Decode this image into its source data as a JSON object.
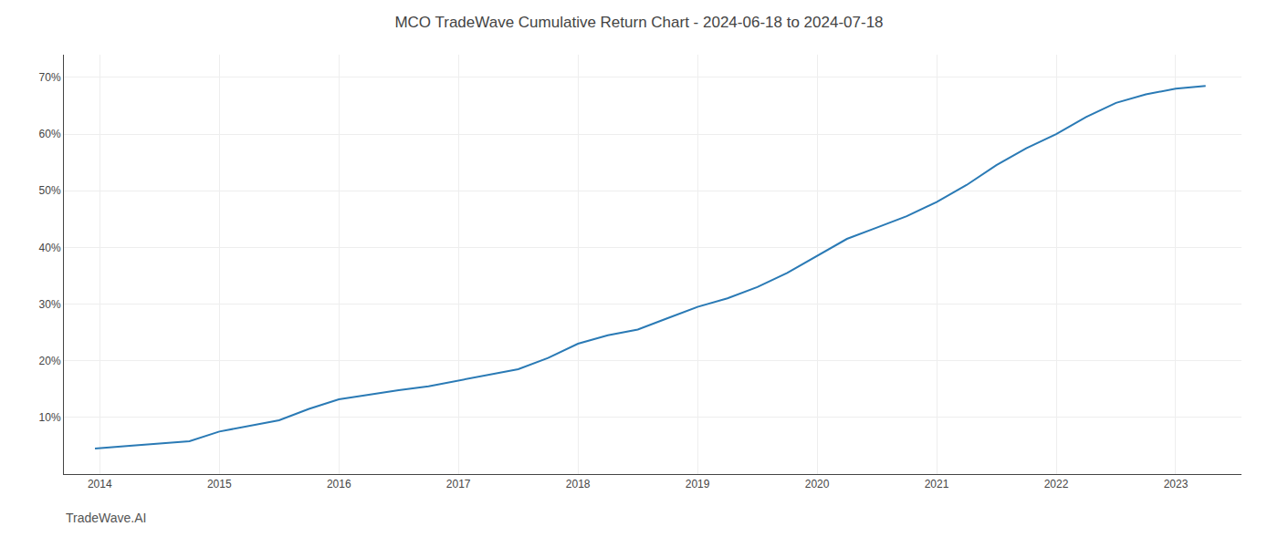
{
  "chart_data": {
    "type": "line",
    "title": "MCO TradeWave Cumulative Return Chart - 2024-06-18 to 2024-07-18",
    "annotations": [
      "TradeWave.AI"
    ],
    "color": "#2a7ab5",
    "grid": true,
    "x": [
      2013.96,
      2014.1,
      2014.25,
      2014.5,
      2014.75,
      2015.0,
      2015.25,
      2015.5,
      2015.75,
      2016.0,
      2016.1,
      2016.25,
      2016.5,
      2016.75,
      2017.0,
      2017.25,
      2017.5,
      2017.75,
      2018.0,
      2018.25,
      2018.5,
      2018.75,
      2019.0,
      2019.25,
      2019.5,
      2019.75,
      2020.0,
      2020.25,
      2020.5,
      2020.75,
      2021.0,
      2021.25,
      2021.5,
      2021.75,
      2022.0,
      2022.25,
      2022.5,
      2022.75,
      2023.0,
      2023.25
    ],
    "values": [
      4.5,
      4.7,
      5.0,
      5.4,
      5.8,
      7.5,
      8.5,
      9.5,
      11.5,
      13.2,
      13.5,
      14.0,
      14.8,
      15.5,
      16.5,
      17.5,
      18.5,
      20.5,
      23.0,
      24.5,
      25.5,
      27.5,
      29.5,
      31.0,
      33.0,
      35.5,
      38.5,
      41.5,
      43.5,
      45.5,
      48.0,
      51.0,
      54.5,
      57.5,
      60.0,
      63.0,
      65.5,
      67.0,
      68.0,
      68.5
    ],
    "xlim": [
      2013.7,
      2023.55
    ],
    "xticks": [
      2014,
      2015,
      2016,
      2017,
      2018,
      2019,
      2020,
      2021,
      2022,
      2023
    ],
    "ylim": [
      0,
      74
    ],
    "yticks": [
      {
        "value": 10,
        "label": "10%"
      },
      {
        "value": 20,
        "label": "20%"
      },
      {
        "value": 30,
        "label": "30%"
      },
      {
        "value": 40,
        "label": "40%"
      },
      {
        "value": 50,
        "label": "50%"
      },
      {
        "value": 60,
        "label": "60%"
      },
      {
        "value": 70,
        "label": "70%"
      }
    ]
  }
}
